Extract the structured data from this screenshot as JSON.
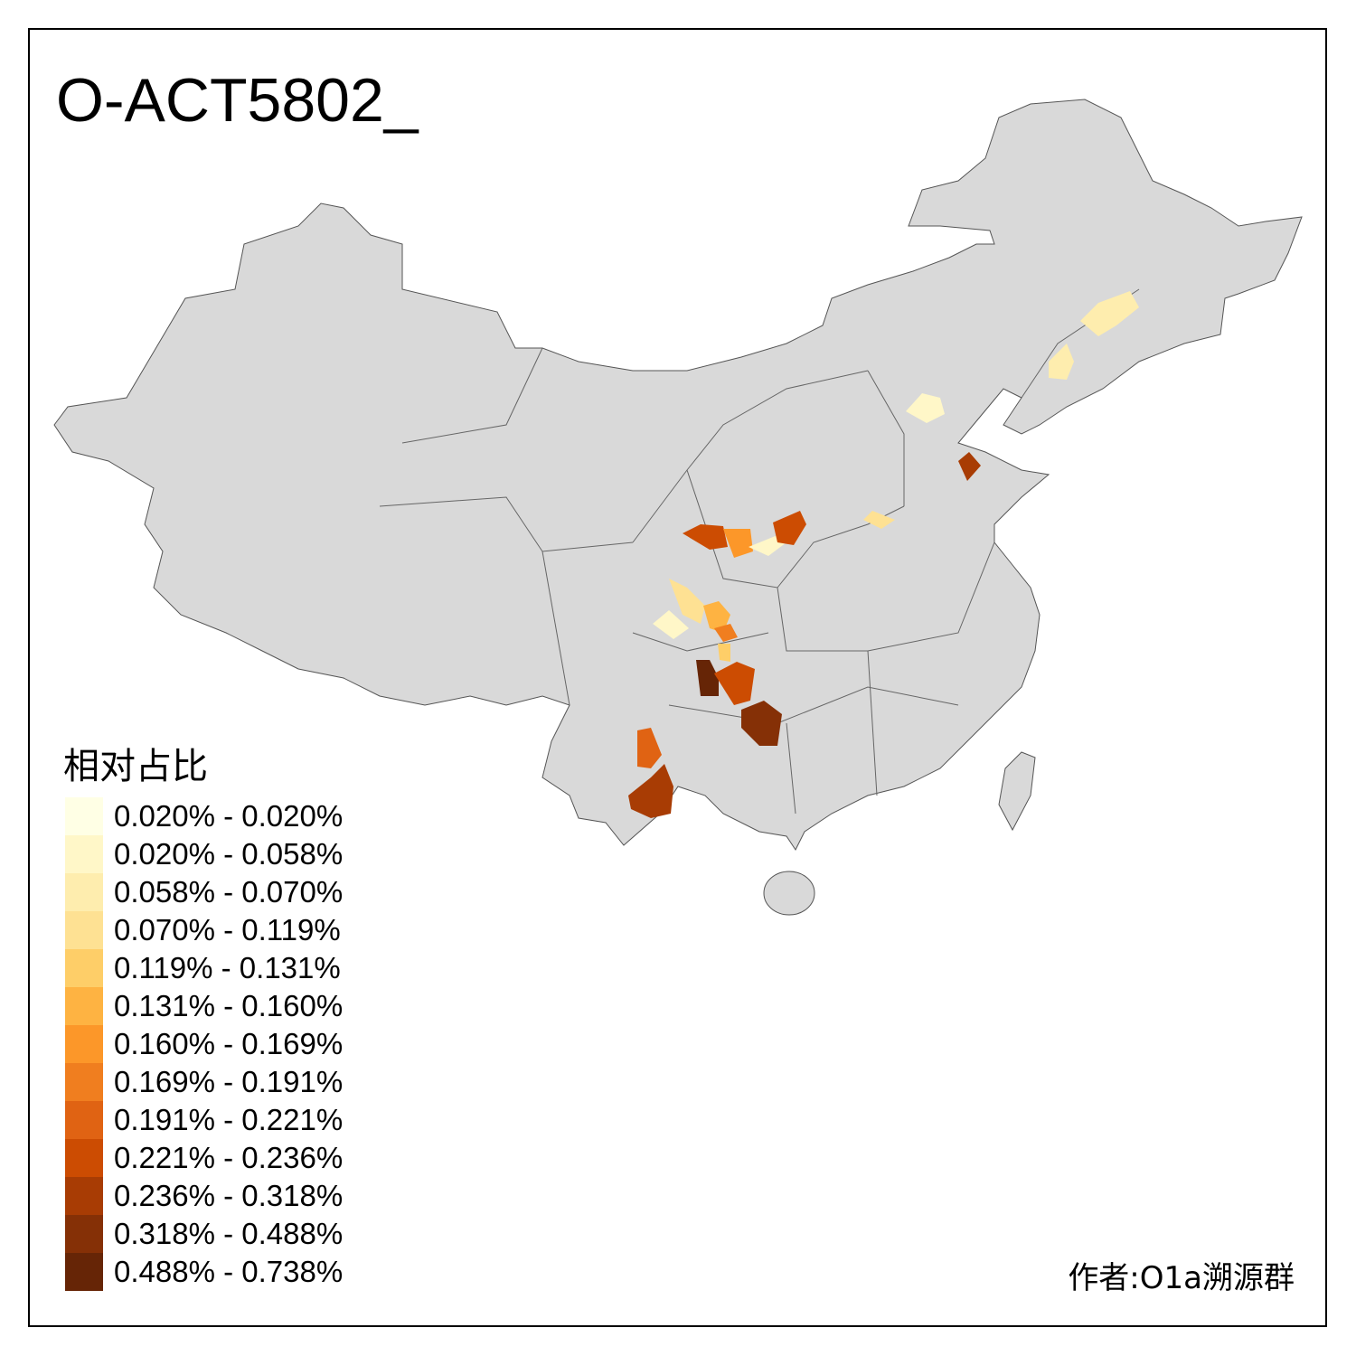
{
  "title": "O-ACT5802_",
  "legend": {
    "title": "相对占比",
    "bins": [
      {
        "label": "0.020% - 0.020%",
        "color": "#FFFFE5"
      },
      {
        "label": "0.020% - 0.058%",
        "color": "#FFF7C8"
      },
      {
        "label": "0.058% - 0.070%",
        "color": "#FEEDAE"
      },
      {
        "label": "0.070% - 0.119%",
        "color": "#FEE193"
      },
      {
        "label": "0.119% - 0.131%",
        "color": "#FECE68"
      },
      {
        "label": "0.131% - 0.160%",
        "color": "#FEB342"
      },
      {
        "label": "0.160% - 0.169%",
        "color": "#FC9729"
      },
      {
        "label": "0.169% - 0.191%",
        "color": "#F07E1F"
      },
      {
        "label": "0.191% - 0.221%",
        "color": "#E06313"
      },
      {
        "label": "0.221% - 0.236%",
        "color": "#CC4C02"
      },
      {
        "label": "0.236% - 0.318%",
        "color": "#A83C04"
      },
      {
        "label": "0.318% - 0.488%",
        "color": "#853006"
      },
      {
        "label": "0.488% - 0.738%",
        "color": "#662506"
      }
    ]
  },
  "map": {
    "base_color": "#D9D9D9",
    "border_color": "#555555"
  },
  "author": "作者:O1a溯源群"
}
